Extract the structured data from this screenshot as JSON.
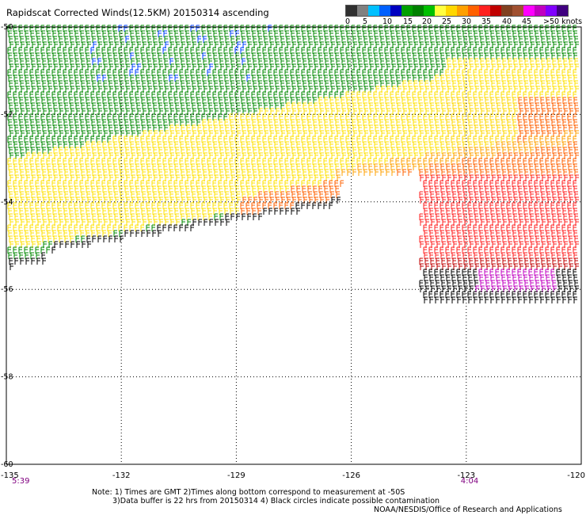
{
  "title": "Rapidscat Corrected Winds(12.5KM) 20150314 ascending",
  "legend": {
    "labels": [
      "0",
      "5",
      "10",
      "15",
      "20",
      "25",
      "30",
      "35",
      "40",
      "45",
      ">50 knots"
    ],
    "colors": [
      "#303030",
      "#808080",
      "#00c0ff",
      "#0060ff",
      "#0000c0",
      "#00a000",
      "#008000",
      "#00c000",
      "#ffff40",
      "#ffd700",
      "#ffa000",
      "#ff6000",
      "#ff2020",
      "#c00000",
      "#804020",
      "#a05030",
      "#ff00ff",
      "#c000c0",
      "#8000ff",
      "#400080"
    ]
  },
  "map": {
    "lat_labels": [
      "-50",
      "-52",
      "-54",
      "-56",
      "-58",
      "-60"
    ],
    "lon_labels": [
      "-135",
      "-132",
      "-129",
      "-126",
      "-123",
      "-120"
    ],
    "time_labels": [
      {
        "text": "5:39",
        "lon": -135
      },
      {
        "text": "4:04",
        "lon": -123
      }
    ]
  },
  "notes": {
    "line1": "Note: 1) Times are GMT 2)Times along bottom correspond to measurement at -50S",
    "line2": "3)Data buffer is 22 hrs from 20150314 4) Black circles indicate possible contamination",
    "line3": "NOAA/NESDIS/Office of Research and Applications"
  }
}
